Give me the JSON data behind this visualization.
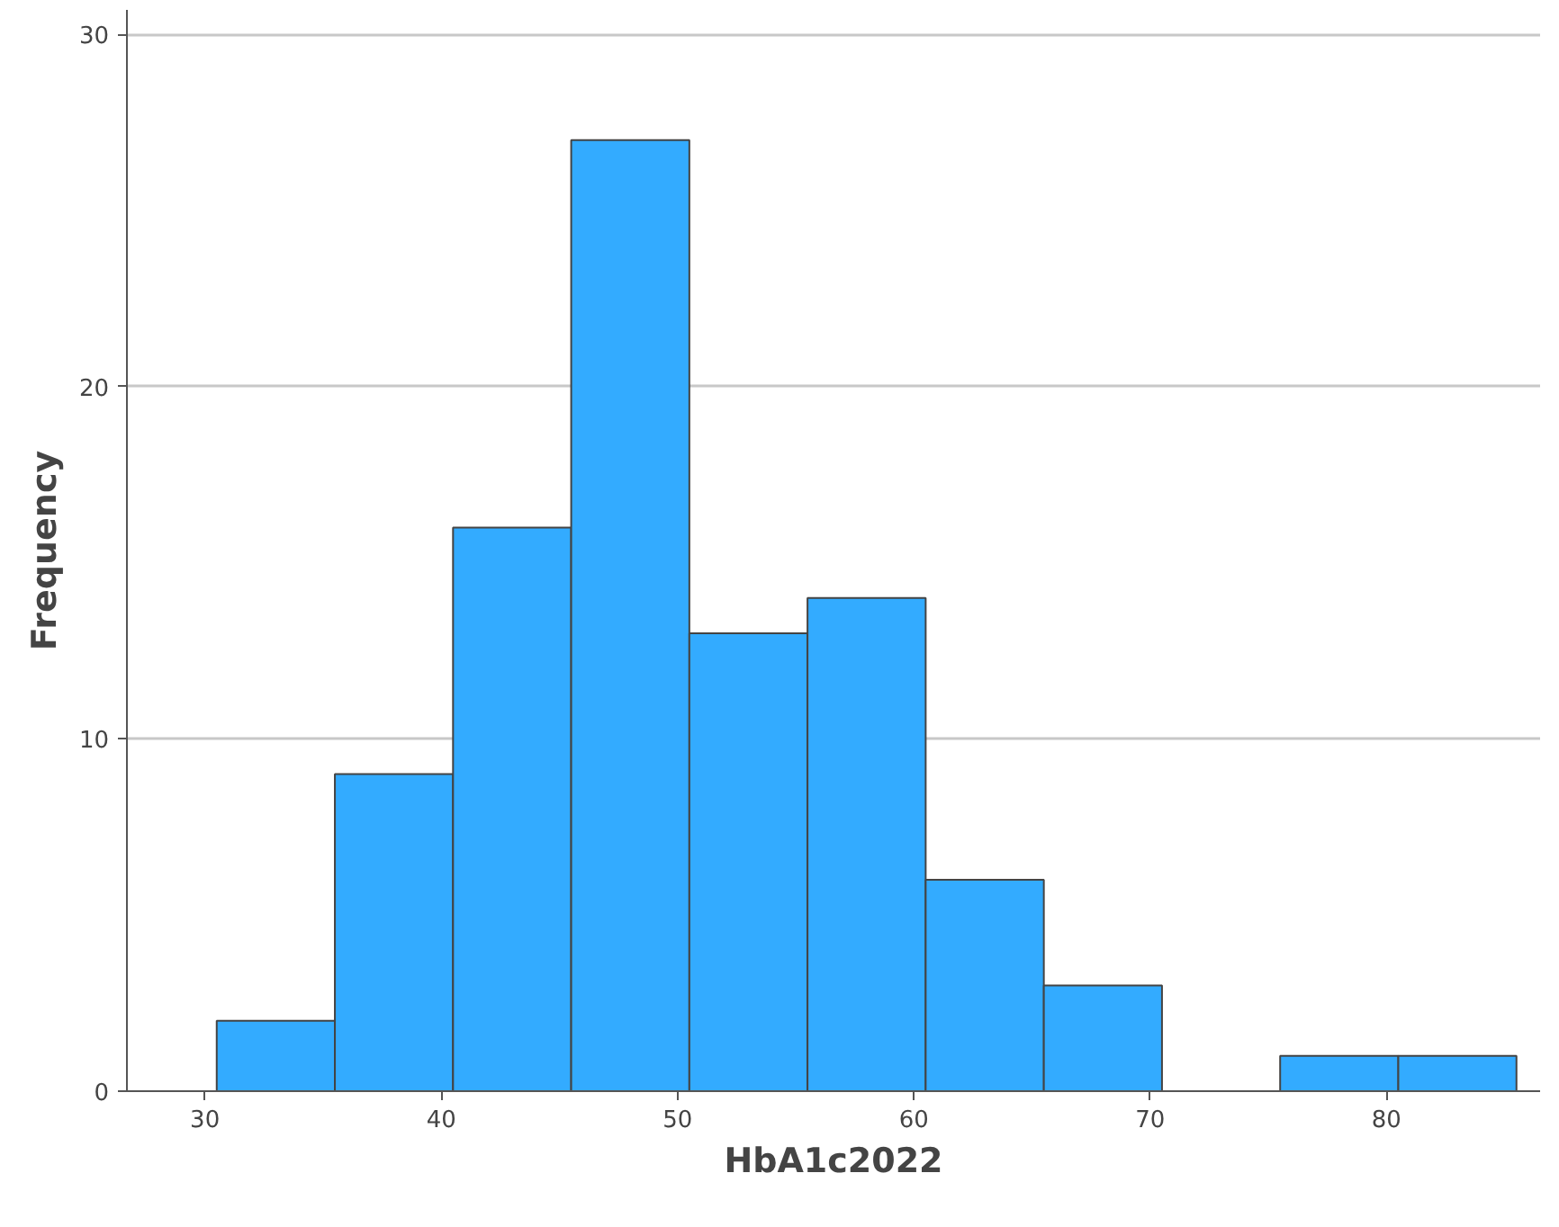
{
  "chart_data": {
    "type": "histogram",
    "xlabel": "HbA1c2022",
    "ylabel": "Frequency",
    "bins": [
      30.5,
      35.5,
      40.5,
      45.5,
      50.5,
      55.5,
      60.5,
      65.5,
      70.5,
      75.5,
      80.5,
      85.5
    ],
    "values": [
      2,
      9,
      16,
      27,
      13,
      14,
      6,
      3,
      0,
      1,
      1
    ],
    "color": "#33abff",
    "xlim": [
      26.7,
      86.5
    ],
    "ylim": [
      0,
      30.7
    ],
    "xticks": [
      30,
      40,
      50,
      60,
      70,
      80
    ],
    "yticks": [
      0,
      10,
      20,
      30
    ],
    "grid": "y"
  }
}
